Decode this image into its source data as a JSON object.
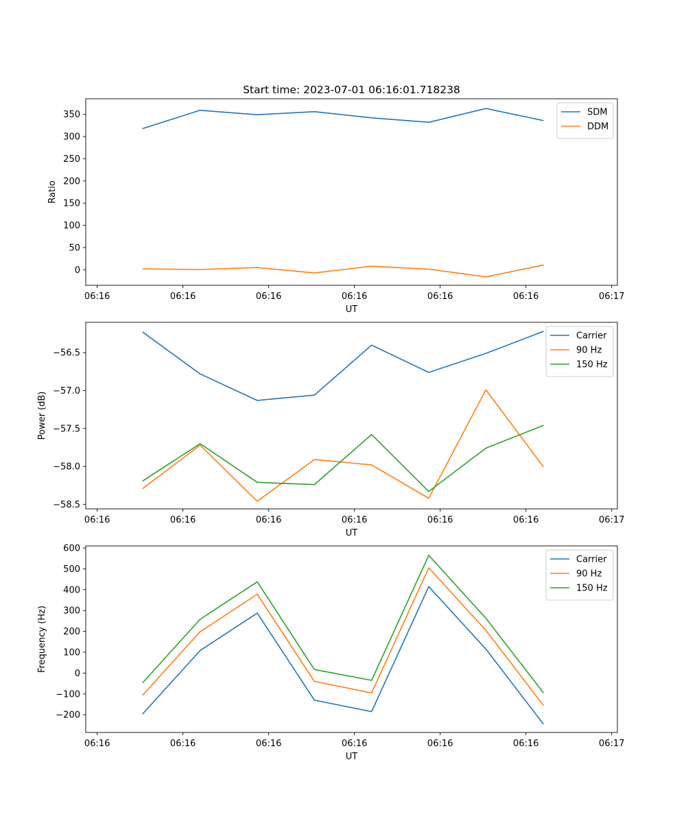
{
  "colors": {
    "c0": "#1f77b4",
    "c1": "#ff7f0e",
    "c2": "#2ca02c"
  },
  "chart_data": [
    {
      "type": "line",
      "title": "Start time: 2023-07-01 06:16:01.718238",
      "xlabel": "UT",
      "ylabel": "Ratio",
      "xlim": [
        0,
        9.3
      ],
      "xticks": [
        0.2,
        1.7,
        3.2,
        4.7,
        6.2,
        7.7,
        9.2
      ],
      "xtick_labels": [
        "06:16",
        "06:16",
        "06:16",
        "06:16",
        "06:16",
        "06:16",
        "06:17"
      ],
      "ylim": [
        -35,
        385
      ],
      "yticks": [
        0,
        50,
        100,
        150,
        200,
        250,
        300,
        350
      ],
      "ytick_labels": [
        "0",
        "50",
        "100",
        "150",
        "200",
        "250",
        "300",
        "350"
      ],
      "x": [
        1,
        2,
        3,
        4,
        5,
        6,
        7,
        8
      ],
      "legend_position": "top-right",
      "series": [
        {
          "name": "SDM",
          "color": "#1f77b4",
          "values": [
            318,
            359,
            349,
            356,
            342,
            332,
            363,
            336
          ]
        },
        {
          "name": "DDM",
          "color": "#ff7f0e",
          "values": [
            2,
            0.5,
            5,
            -7,
            8,
            1.5,
            -16,
            10.5
          ]
        }
      ]
    },
    {
      "type": "line",
      "title": "",
      "xlabel": "UT",
      "ylabel": "Power (dB)",
      "xlim": [
        0,
        9.3
      ],
      "xticks": [
        0.2,
        1.7,
        3.2,
        4.7,
        6.2,
        7.7,
        9.2
      ],
      "xtick_labels": [
        "06:16",
        "06:16",
        "06:16",
        "06:16",
        "06:16",
        "06:16",
        "06:17"
      ],
      "ylim": [
        -58.56,
        -56.1
      ],
      "yticks": [
        -58.5,
        -58.0,
        -57.5,
        -57.0,
        -56.5
      ],
      "ytick_labels": [
        "−58.5",
        "−58.0",
        "−57.5",
        "−57.0",
        "−56.5"
      ],
      "x": [
        1,
        2,
        3,
        4,
        5,
        6,
        7,
        8
      ],
      "legend_position": "top-right",
      "series": [
        {
          "name": "Carrier",
          "color": "#1f77b4",
          "values": [
            -56.23,
            -56.78,
            -57.13,
            -57.06,
            -56.4,
            -56.76,
            -56.51,
            -56.22
          ]
        },
        {
          "name": "90 Hz",
          "color": "#ff7f0e",
          "values": [
            -58.29,
            -57.72,
            -58.46,
            -57.91,
            -57.98,
            -58.42,
            -56.99,
            -58.0
          ]
        },
        {
          "name": "150 Hz",
          "color": "#2ca02c",
          "values": [
            -58.19,
            -57.7,
            -58.21,
            -58.24,
            -57.58,
            -58.33,
            -57.76,
            -57.46
          ]
        }
      ]
    },
    {
      "type": "line",
      "title": "",
      "xlabel": "UT",
      "ylabel": "Frequency (Hz)",
      "xlim": [
        0,
        9.3
      ],
      "xticks": [
        0.2,
        1.7,
        3.2,
        4.7,
        6.2,
        7.7,
        9.2
      ],
      "xtick_labels": [
        "06:16",
        "06:16",
        "06:16",
        "06:16",
        "06:16",
        "06:16",
        "06:17"
      ],
      "ylim": [
        -285,
        610
      ],
      "yticks": [
        -200,
        -100,
        0,
        100,
        200,
        300,
        400,
        500,
        600
      ],
      "ytick_labels": [
        "−200",
        "−100",
        "0",
        "100",
        "200",
        "300",
        "400",
        "500",
        "600"
      ],
      "x": [
        1,
        2,
        3,
        4,
        5,
        6,
        7,
        8
      ],
      "legend_position": "top-right",
      "series": [
        {
          "name": "Carrier",
          "color": "#1f77b4",
          "values": [
            -195,
            108,
            288,
            -130,
            -185,
            415,
            115,
            -243
          ]
        },
        {
          "name": "90 Hz",
          "color": "#ff7f0e",
          "values": [
            -105,
            198,
            378,
            -40,
            -95,
            505,
            205,
            -153
          ]
        },
        {
          "name": "150 Hz",
          "color": "#2ca02c",
          "values": [
            -45,
            258,
            438,
            17,
            -35,
            565,
            263,
            -93
          ]
        }
      ]
    }
  ]
}
